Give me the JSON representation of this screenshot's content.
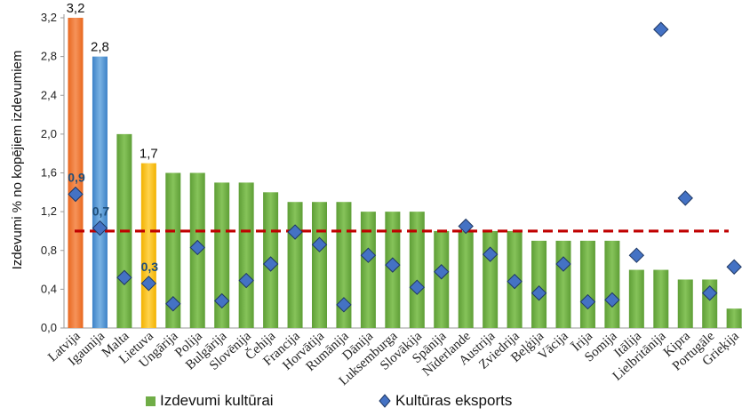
{
  "chart_data": {
    "type": "bar",
    "ylabel": "Izdevumi % no kopējiem izdevumiem",
    "ylim": [
      0,
      3.2
    ],
    "yticks": [
      "0,0",
      "0,4",
      "0,8",
      "1,2",
      "1,6",
      "2,0",
      "2,4",
      "2,8",
      "3,2"
    ],
    "categories": [
      "Latvija",
      "Igaunija",
      "Malta",
      "Lietuva",
      "Ungārija",
      "Polija",
      "Bulgārija",
      "Slovēnija",
      "Čehija",
      "Francija",
      "Horvātija",
      "Rumānija",
      "Dānija",
      "Luksemburga",
      "Slovākija",
      "Spānija",
      "Nīderlande",
      "Austrija",
      "Zviedrija",
      "Beļģija",
      "Vācija",
      "Īrija",
      "Somija",
      "Itālija",
      "Lielbritānija",
      "Kipra",
      "Portugāle",
      "Grieķija"
    ],
    "series": [
      {
        "name": "Izdevumi kultūrai",
        "kind": "bar",
        "color": "#70ad47",
        "values": [
          3.2,
          2.8,
          2.0,
          1.7,
          1.6,
          1.6,
          1.5,
          1.5,
          1.4,
          1.3,
          1.3,
          1.3,
          1.2,
          1.2,
          1.2,
          1.0,
          1.0,
          1.0,
          1.0,
          0.9,
          0.9,
          0.9,
          0.9,
          0.6,
          0.6,
          0.5,
          0.5,
          0.2
        ]
      },
      {
        "name": "Kultūras eksports",
        "kind": "scatter",
        "marker": "diamond",
        "color": "#4472c4",
        "values": [
          1.38,
          1.03,
          0.52,
          0.46,
          0.25,
          0.83,
          0.28,
          0.49,
          0.66,
          0.99,
          0.86,
          0.24,
          0.75,
          0.65,
          0.42,
          0.58,
          1.05,
          0.76,
          0.48,
          0.36,
          0.66,
          0.27,
          0.29,
          0.75,
          3.08,
          1.34,
          0.36,
          0.63
        ]
      }
    ],
    "highlight_colors": {
      "Latvija": "#ed7d31",
      "Igaunija": "#5b9bd5",
      "Lietuva": "#ffc000"
    },
    "reference_line": {
      "value": 1.0,
      "color": "#c00000",
      "style": "dashed"
    },
    "bar_labels": {
      "Latvija": "3,2",
      "Igaunija": "2,8",
      "Lietuva": "1,7"
    },
    "point_labels": {
      "Latvija": "0,9",
      "Igaunija": "0,7",
      "Lietuva": "0,3"
    },
    "legend": {
      "placement": "bottom",
      "entries": [
        "Izdevumi kultūrai",
        "Kultūras eksports"
      ]
    },
    "grid": false
  }
}
